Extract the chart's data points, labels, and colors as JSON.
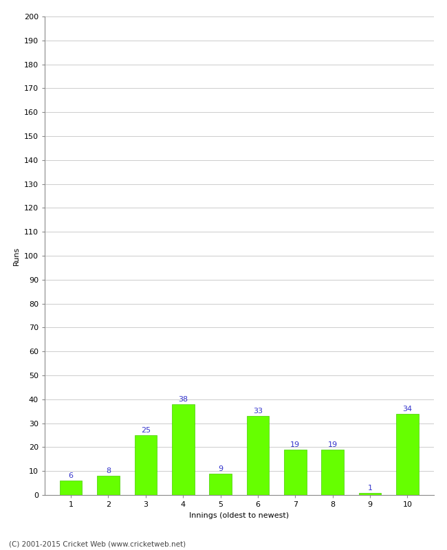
{
  "categories": [
    "1",
    "2",
    "3",
    "4",
    "5",
    "6",
    "7",
    "8",
    "9",
    "10"
  ],
  "values": [
    6,
    8,
    25,
    38,
    9,
    33,
    19,
    19,
    1,
    34
  ],
  "bar_color": "#66ff00",
  "bar_edge_color": "#44cc00",
  "label_color": "#3333cc",
  "xlabel": "Innings (oldest to newest)",
  "ylabel": "Runs",
  "ylim": [
    0,
    200
  ],
  "yticks": [
    0,
    10,
    20,
    30,
    40,
    50,
    60,
    70,
    80,
    90,
    100,
    110,
    120,
    130,
    140,
    150,
    160,
    170,
    180,
    190,
    200
  ],
  "footer": "(C) 2001-2015 Cricket Web (www.cricketweb.net)",
  "background_color": "#ffffff",
  "grid_color": "#cccccc",
  "label_fontsize": 8,
  "axis_label_fontsize": 8,
  "tick_fontsize": 8,
  "footer_fontsize": 7.5
}
